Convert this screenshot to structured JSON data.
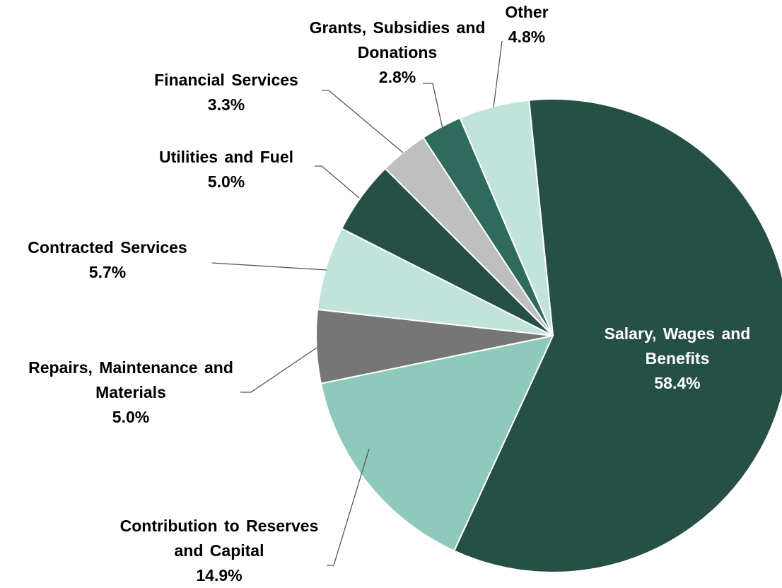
{
  "chart_data": {
    "type": "pie",
    "categories": [
      "Salary, Wages and Benefits",
      "Contribution to Reserves and Capital",
      "Repairs, Maintenance and Materials",
      "Contracted Services",
      "Utilities and Fuel",
      "Financial Services",
      "Grants, Subsidies and Donations",
      "Other"
    ],
    "values": [
      58.4,
      14.9,
      5.0,
      5.7,
      5.0,
      3.3,
      2.8,
      4.8
    ],
    "value_labels": [
      "58.4%",
      "14.9%",
      "5.0%",
      "5.7%",
      "5.0%",
      "3.3%",
      "2.8%",
      "4.8%"
    ],
    "colors": [
      "#264f45",
      "#8ecabb",
      "#767676",
      "#c2e3dc",
      "#264f45",
      "#bfbfbf",
      "#2e6b5c",
      "#c2e3dc"
    ]
  }
}
